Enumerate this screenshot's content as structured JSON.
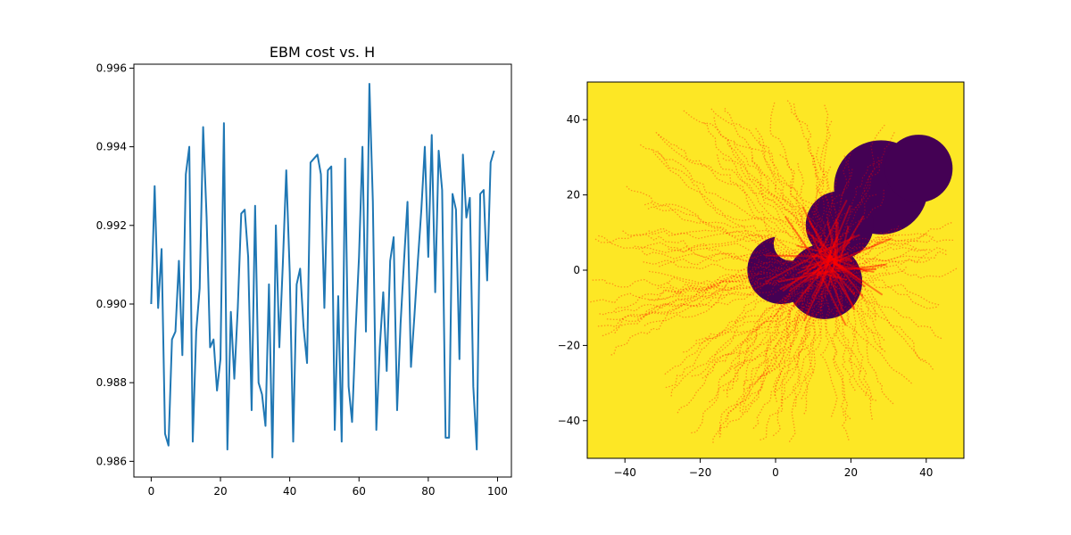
{
  "chart_data": [
    {
      "type": "line",
      "title": "EBM cost vs. H",
      "xlabel": "",
      "ylabel": "",
      "xlim": [
        -5,
        104
      ],
      "ylim": [
        0.9856,
        0.9961
      ],
      "xticks": [
        0,
        20,
        40,
        60,
        80,
        100
      ],
      "yticks": [
        0.986,
        0.988,
        0.99,
        0.992,
        0.994,
        0.996
      ],
      "ytick_labels": [
        "0.986",
        "0.988",
        "0.990",
        "0.992",
        "0.994",
        "0.996"
      ],
      "grid": false,
      "series": [
        {
          "color": "#1f77b4",
          "x": [
            0,
            1,
            2,
            3,
            4,
            5,
            6,
            7,
            8,
            9,
            10,
            11,
            12,
            13,
            14,
            15,
            16,
            17,
            18,
            19,
            20,
            21,
            22,
            23,
            24,
            25,
            26,
            27,
            28,
            29,
            30,
            31,
            32,
            33,
            34,
            35,
            36,
            37,
            38,
            39,
            40,
            41,
            42,
            43,
            44,
            45,
            46,
            47,
            48,
            49,
            50,
            51,
            52,
            53,
            54,
            55,
            56,
            57,
            58,
            59,
            60,
            61,
            62,
            63,
            64,
            65,
            66,
            67,
            68,
            69,
            70,
            71,
            72,
            73,
            74,
            75,
            76,
            77,
            78,
            79,
            80,
            81,
            82,
            83,
            84,
            85,
            86,
            87,
            88,
            89,
            90,
            91,
            92,
            93,
            94,
            95,
            96,
            97,
            98,
            99
          ],
          "values": [
            0.99,
            0.993,
            0.9899,
            0.9914,
            0.9867,
            0.9864,
            0.9891,
            0.9893,
            0.9911,
            0.9887,
            0.9933,
            0.994,
            0.9865,
            0.9893,
            0.9904,
            0.9945,
            0.9922,
            0.9889,
            0.9891,
            0.9878,
            0.9886,
            0.9946,
            0.9863,
            0.9898,
            0.9881,
            0.9899,
            0.9923,
            0.9924,
            0.9912,
            0.9873,
            0.9925,
            0.988,
            0.9877,
            0.9869,
            0.9905,
            0.9861,
            0.992,
            0.9889,
            0.991,
            0.9934,
            0.9908,
            0.9865,
            0.9905,
            0.9909,
            0.9894,
            0.9885,
            0.9936,
            0.9937,
            0.9938,
            0.9933,
            0.9899,
            0.9934,
            0.9935,
            0.9868,
            0.9902,
            0.9865,
            0.9937,
            0.9879,
            0.987,
            0.9893,
            0.9912,
            0.994,
            0.9893,
            0.9956,
            0.9926,
            0.9868,
            0.9889,
            0.9903,
            0.9883,
            0.9911,
            0.9917,
            0.9873,
            0.9895,
            0.9911,
            0.9926,
            0.9884,
            0.9897,
            0.9911,
            0.9924,
            0.994,
            0.9912,
            0.9943,
            0.9903,
            0.9939,
            0.9929,
            0.9866,
            0.9866,
            0.9928,
            0.9924,
            0.9886,
            0.9938,
            0.9922,
            0.9927,
            0.9879,
            0.9863,
            0.9928,
            0.9929,
            0.9906,
            0.9936,
            0.9939
          ]
        }
      ]
    },
    {
      "type": "heatmap",
      "title": "",
      "xlabel": "",
      "ylabel": "",
      "xlim": [
        -50,
        50
      ],
      "ylim": [
        -50,
        50
      ],
      "xticks": [
        -40,
        -20,
        0,
        20,
        40
      ],
      "yticks": [
        -40,
        -20,
        0,
        20,
        40
      ],
      "grid": false,
      "background_color": "#fde725",
      "obstacle_color": "#440154",
      "trajectory_color": "#ff0000",
      "obstacles": [
        {
          "cx": 1.5,
          "cy": 0.0,
          "r": 9.0,
          "hole_cx": 4.0,
          "hole_cy": 7.0,
          "hole_r": 4.5
        },
        {
          "cx": 28.0,
          "cy": 22.0,
          "r": 12.5
        },
        {
          "cx": 38.0,
          "cy": 27.0,
          "r": 9.0
        },
        {
          "cx": 17.0,
          "cy": 12.0,
          "r": 9.0
        },
        {
          "cx": 13.0,
          "cy": -3.0,
          "r": 10.0
        }
      ],
      "trajectory_goal": [
        14.0,
        2.0
      ]
    }
  ]
}
